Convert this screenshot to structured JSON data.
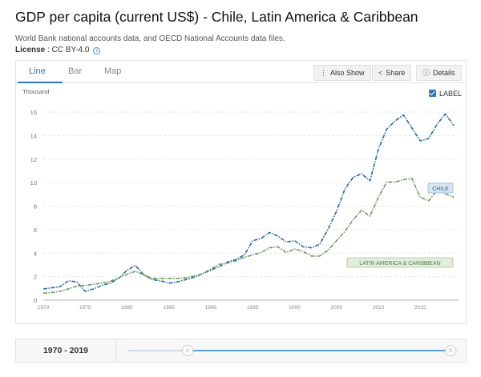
{
  "header": {
    "title": "GDP per capita (current US$) - Chile, Latin America & Caribbean",
    "source": "World Bank national accounts data, and OECD National Accounts data files.",
    "license_label": "License",
    "license_value": " : CC BY-4.0"
  },
  "tabs": [
    {
      "label": "Line",
      "active": true
    },
    {
      "label": "Bar",
      "active": false
    },
    {
      "label": "Map",
      "active": false
    }
  ],
  "toolbar": {
    "also_show": "Also Show",
    "share": "Share",
    "details": "Details"
  },
  "label_toggle": "LABEL",
  "range": {
    "label": "1970 - 2019",
    "start_fraction": 0.0,
    "end_fraction": 1.0
  },
  "chart_data": {
    "type": "line",
    "title": "GDP per capita (current US$) - Chile, Latin America & Caribbean",
    "ylabel": "Thousand",
    "xlim": [
      1970,
      2019
    ],
    "ylim": [
      0,
      16
    ],
    "xticks": [
      "1970",
      "1975",
      "1980",
      "1985",
      "1990",
      "1995",
      "2000",
      "2005",
      "2010",
      "2015"
    ],
    "yticks": [
      "0",
      "2",
      "4",
      "6",
      "8",
      "10",
      "12",
      "14",
      "16"
    ],
    "grid": true,
    "x": [
      1970,
      1971,
      1972,
      1973,
      1974,
      1975,
      1976,
      1977,
      1978,
      1979,
      1980,
      1981,
      1982,
      1983,
      1984,
      1985,
      1986,
      1987,
      1988,
      1989,
      1990,
      1991,
      1992,
      1993,
      1994,
      1995,
      1996,
      1997,
      1998,
      1999,
      2000,
      2001,
      2002,
      2003,
      2004,
      2005,
      2006,
      2007,
      2008,
      2009,
      2010,
      2011,
      2012,
      2013,
      2014,
      2015,
      2016,
      2017,
      2018,
      2019
    ],
    "series": [
      {
        "name": "CHILE",
        "color": "#2c6aa0",
        "values": [
          0.95,
          1.05,
          1.15,
          1.65,
          1.55,
          0.75,
          0.95,
          1.25,
          1.45,
          1.85,
          2.55,
          2.95,
          2.15,
          1.75,
          1.65,
          1.45,
          1.55,
          1.75,
          1.95,
          2.25,
          2.55,
          2.85,
          3.25,
          3.45,
          3.85,
          5.05,
          5.25,
          5.75,
          5.45,
          4.95,
          5.05,
          4.55,
          4.45,
          4.75,
          6.05,
          7.55,
          9.45,
          10.45,
          10.75,
          10.15,
          12.85,
          14.55,
          15.25,
          15.75,
          14.65,
          13.55,
          13.75,
          14.95,
          15.85,
          14.85
        ]
      },
      {
        "name": "LATIN AMERICA & CARIBBEAN",
        "color": "#6b9a5e",
        "values": [
          0.6,
          0.65,
          0.75,
          0.95,
          1.2,
          1.25,
          1.35,
          1.45,
          1.6,
          1.9,
          2.2,
          2.45,
          2.15,
          1.85,
          1.85,
          1.85,
          1.85,
          1.9,
          2.05,
          2.25,
          2.65,
          3.05,
          3.15,
          3.35,
          3.65,
          3.85,
          4.05,
          4.45,
          4.55,
          4.05,
          4.35,
          4.15,
          3.75,
          3.75,
          4.25,
          5.05,
          5.85,
          6.85,
          7.65,
          7.15,
          8.75,
          10.05,
          10.05,
          10.25,
          10.35,
          8.75,
          8.45,
          9.35,
          9.05,
          8.75
        ]
      }
    ]
  }
}
